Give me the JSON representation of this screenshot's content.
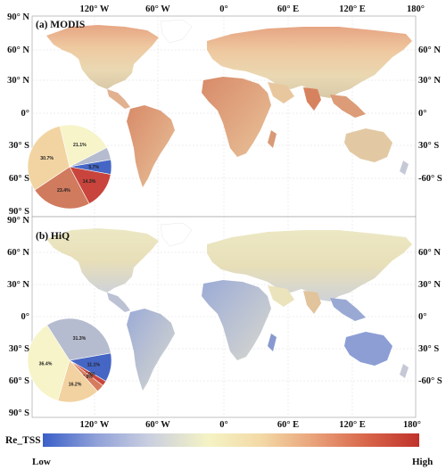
{
  "top_axis_labels": [
    "120° W",
    "60° W",
    "0°",
    "60° E",
    "120° E",
    "180°"
  ],
  "bottom_axis_labels": [
    "120° W",
    "60° W",
    "0°",
    "60° E",
    "120° E",
    "180°"
  ],
  "left_axis_labels": [
    "90° N",
    "60° N",
    "30° N",
    "0°",
    "30° S",
    "60° S",
    "90° S"
  ],
  "right_axis_labels": [
    "60° N",
    "30° N",
    "0°",
    "30° S",
    "-60° S"
  ],
  "panels": [
    {
      "label": "(a)  MODIS",
      "left_labels": [
        "90° N",
        "60° N",
        "30° N",
        "0°",
        "30° S",
        "60° S",
        "90° S"
      ],
      "right_labels": [
        "60° N",
        "30° N",
        "0°",
        "30° S",
        "-60° S"
      ],
      "pie": [
        {
          "value": 5.7,
          "label": "5.7%",
          "color": "#4566c5"
        },
        {
          "value": 14.3,
          "label": "14.3%",
          "color": "#c8443c"
        },
        {
          "value": 23.4,
          "label": "23.4%",
          "color": "#d07a5e"
        },
        {
          "value": 30.7,
          "label": "30.7%",
          "color": "#f2d4a2"
        },
        {
          "value": 21.1,
          "label": "21.1%",
          "color": "#f6f4c8"
        },
        {
          "value": 4.8,
          "label": "",
          "color": "#b6bccf"
        }
      ]
    },
    {
      "label": "(b)  HiQ",
      "left_labels": [
        "90° N",
        "60° N",
        "30° N",
        "0°",
        "30° S",
        "60° S",
        "90° S"
      ],
      "right_labels": [
        "60° N",
        "30° N",
        "0°",
        "30° S",
        "-60° S"
      ],
      "pie": [
        {
          "value": 11.1,
          "label": "11.1%",
          "color": "#4566c5"
        },
        {
          "value": 2.0,
          "label": "2.0%",
          "color": "#c8443c"
        },
        {
          "value": 3.0,
          "label": "3.0%",
          "color": "#d77b5e"
        },
        {
          "value": 16.2,
          "label": "16.2%",
          "color": "#f2d2a0"
        },
        {
          "value": 36.4,
          "label": "36.4%",
          "color": "#f6f4c8"
        },
        {
          "value": 31.3,
          "label": "31.3%",
          "color": "#b6bccf"
        }
      ]
    }
  ],
  "legend": {
    "title": "Re_TSS",
    "low_label": "Low",
    "high_label": "High",
    "colors": [
      "#3a5fc8",
      "#8fa0d8",
      "#c9cee0",
      "#f5f3c4",
      "#f3d9a6",
      "#e9a27a",
      "#d8664a",
      "#c0322c"
    ]
  }
}
